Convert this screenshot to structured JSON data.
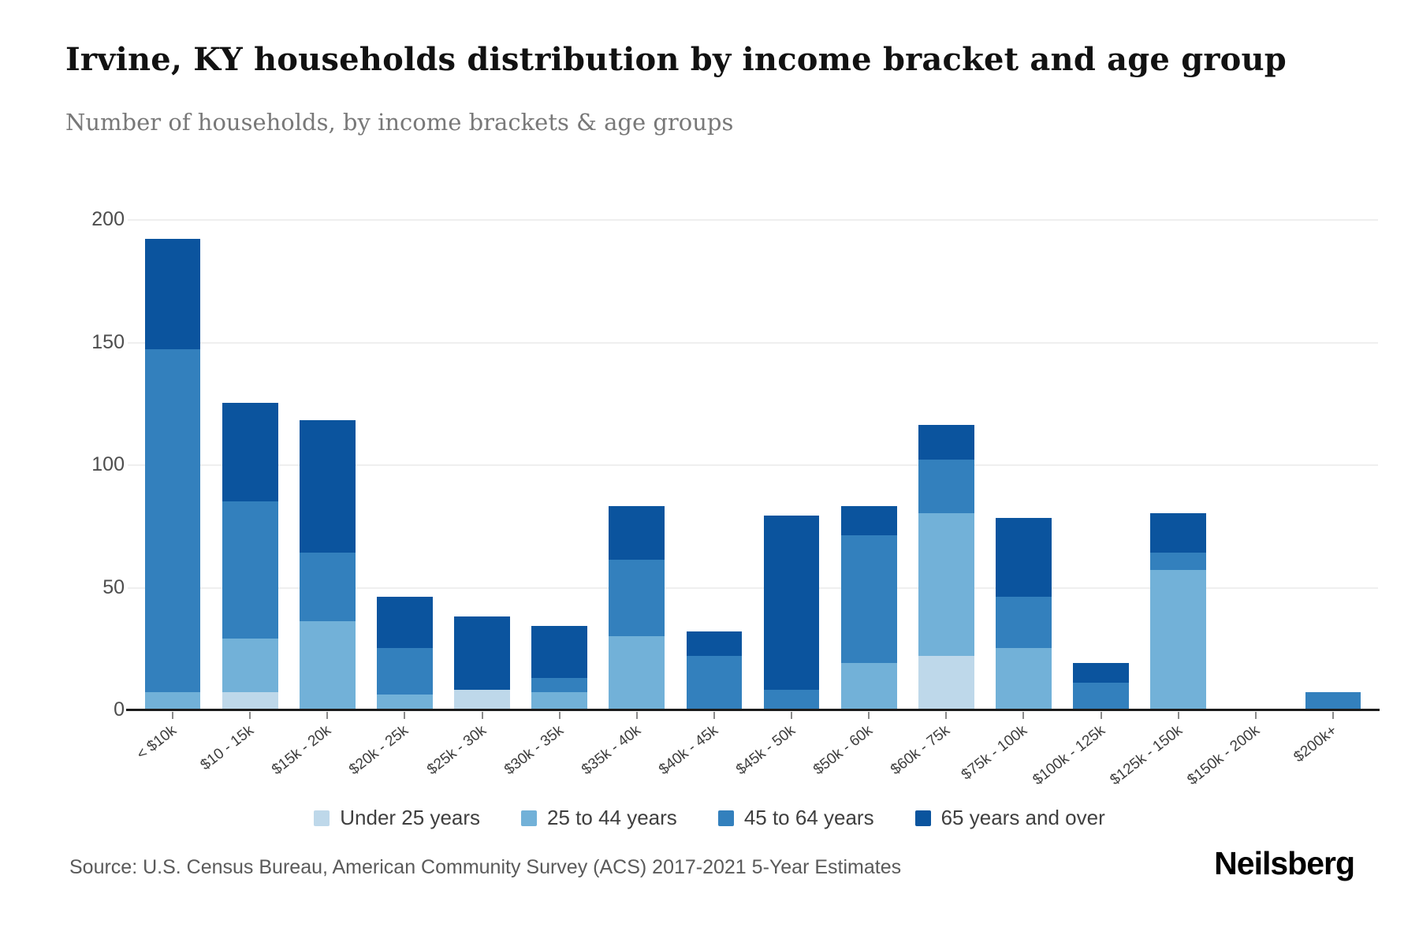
{
  "header": {
    "title": "Irvine, KY households distribution by income bracket and age group",
    "subtitle": "Number of households, by income brackets & age groups"
  },
  "chart_data": {
    "type": "bar",
    "stacked": true,
    "title": "Irvine, KY households distribution by income bracket and age group",
    "xlabel": "",
    "ylabel": "Number of households",
    "ylim": [
      0,
      200
    ],
    "yticks": [
      0,
      50,
      100,
      150,
      200
    ],
    "grid": true,
    "legend_position": "bottom",
    "categories": [
      "< $10k",
      "$10 - 15k",
      "$15k - 20k",
      "$20k - 25k",
      "$25k - 30k",
      "$30k - 35k",
      "$35k - 40k",
      "$40k - 45k",
      "$45k - 50k",
      "$50k - 60k",
      "$60k - 75k",
      "$75k - 100k",
      "$100k - 125k",
      "$125k - 150k",
      "$150k - 200k",
      "$200k+"
    ],
    "series": [
      {
        "name": "Under 25 years",
        "color": "#bed8ea",
        "values": [
          0,
          7,
          0,
          0,
          8,
          0,
          0,
          0,
          0,
          0,
          22,
          0,
          0,
          0,
          0,
          0
        ]
      },
      {
        "name": "25 to 44 years",
        "color": "#72b1d8",
        "values": [
          7,
          22,
          36,
          6,
          0,
          7,
          30,
          0,
          0,
          19,
          58,
          25,
          0,
          57,
          0,
          0
        ]
      },
      {
        "name": "45 to 64 years",
        "color": "#3380bd",
        "values": [
          140,
          56,
          28,
          19,
          0,
          6,
          31,
          22,
          8,
          52,
          22,
          21,
          11,
          7,
          0,
          7
        ]
      },
      {
        "name": "65 years and over",
        "color": "#0b549e",
        "values": [
          45,
          40,
          54,
          21,
          30,
          21,
          22,
          10,
          71,
          12,
          14,
          32,
          8,
          16,
          0,
          0
        ]
      }
    ],
    "totals": [
      192,
      125,
      118,
      46,
      38,
      34,
      83,
      32,
      79,
      83,
      116,
      78,
      19,
      80,
      0,
      7
    ]
  },
  "footer": {
    "source": "Source: U.S. Census Bureau, American Community Survey (ACS) 2017-2021 5-Year Estimates",
    "brand": "Neilsberg"
  }
}
